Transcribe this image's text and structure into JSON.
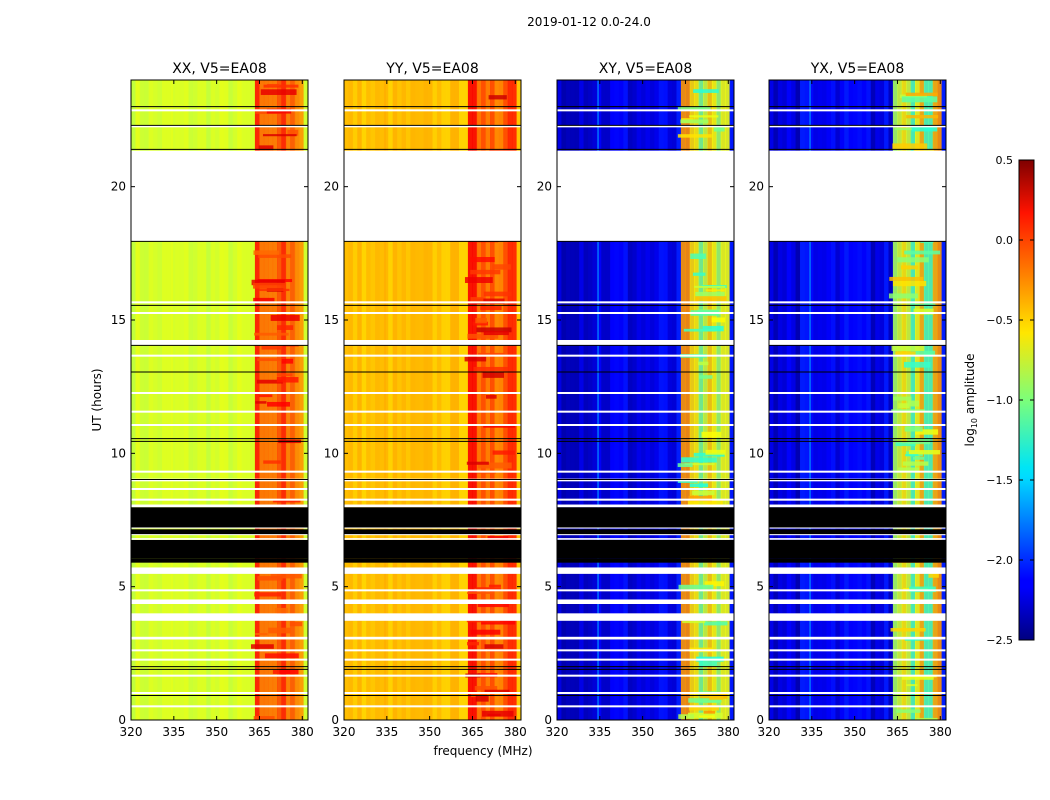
{
  "figure_title": "2019-01-12 0.0-24.0",
  "xlabel": "frequency (MHz)",
  "ylabel": "UT (hours)",
  "colorbar": {
    "label_prefix": "log",
    "label_sub": "10",
    "label_suffix": " amplitude",
    "range": [
      -2.5,
      0.5
    ],
    "ticks": [
      "0.5",
      "0.0",
      "−0.5",
      "−1.0",
      "−1.5",
      "−2.0",
      "−2.5"
    ],
    "tick_values": [
      0.5,
      0.0,
      -0.5,
      -1.0,
      -1.5,
      -2.0,
      -2.5
    ],
    "colormap": "jet"
  },
  "chart_data": [
    {
      "type": "heatmap",
      "title": "XX, V5=EA08",
      "xlim": [
        320,
        382
      ],
      "ylim": [
        0,
        24
      ],
      "xticks": [
        320,
        335,
        350,
        365,
        380
      ],
      "yticks": [
        0,
        5,
        10,
        15,
        20
      ],
      "baseline_value": -0.75,
      "rfi_band_mhz": [
        362,
        380
      ],
      "rfi_value": -0.2
    },
    {
      "type": "heatmap",
      "title": "YY, V5=EA08",
      "xlim": [
        320,
        382
      ],
      "ylim": [
        0,
        24
      ],
      "xticks": [
        320,
        335,
        350,
        365,
        380
      ],
      "yticks": [
        0,
        5,
        10,
        15,
        20
      ],
      "baseline_value": -0.45,
      "rfi_band_mhz": [
        362,
        380
      ],
      "rfi_value": -0.15
    },
    {
      "type": "heatmap",
      "title": "XY, V5=EA08",
      "xlim": [
        320,
        382
      ],
      "ylim": [
        0,
        24
      ],
      "xticks": [
        320,
        335,
        350,
        365,
        380
      ],
      "yticks": [
        0,
        5,
        10,
        15,
        20
      ],
      "baseline_value": -2.2,
      "rfi_band_mhz": [
        362,
        380
      ],
      "rfi_value": -0.9
    },
    {
      "type": "heatmap",
      "title": "YX, V5=EA08",
      "xlim": [
        320,
        382
      ],
      "ylim": [
        0,
        24
      ],
      "xticks": [
        320,
        335,
        350,
        365,
        380
      ],
      "yticks": [
        0,
        5,
        10,
        15,
        20
      ],
      "baseline_value": -2.2,
      "rfi_band_mhz": [
        362,
        380
      ],
      "rfi_value": -0.9
    }
  ],
  "time_segments": {
    "blank_hours": [
      [
        17.95,
        21.35
      ],
      [
        14.05,
        14.25
      ],
      [
        8.95,
        9.05
      ],
      [
        7.98,
        8.08
      ],
      [
        5.48,
        5.72
      ],
      [
        4.35,
        4.52
      ],
      [
        3.72,
        4.0
      ],
      [
        3.02,
        3.12
      ]
    ],
    "flagged_black_hours": [
      [
        6.05,
        6.75
      ],
      [
        5.9,
        6.05
      ],
      [
        7.2,
        7.98
      ],
      [
        6.95,
        7.15
      ]
    ],
    "separator_hours": [
      17.95,
      15.55,
      14.05,
      13.05,
      10.55,
      10.45,
      9.02,
      2.0,
      1.9,
      0.92,
      21.4,
      22.3,
      23.0
    ]
  }
}
